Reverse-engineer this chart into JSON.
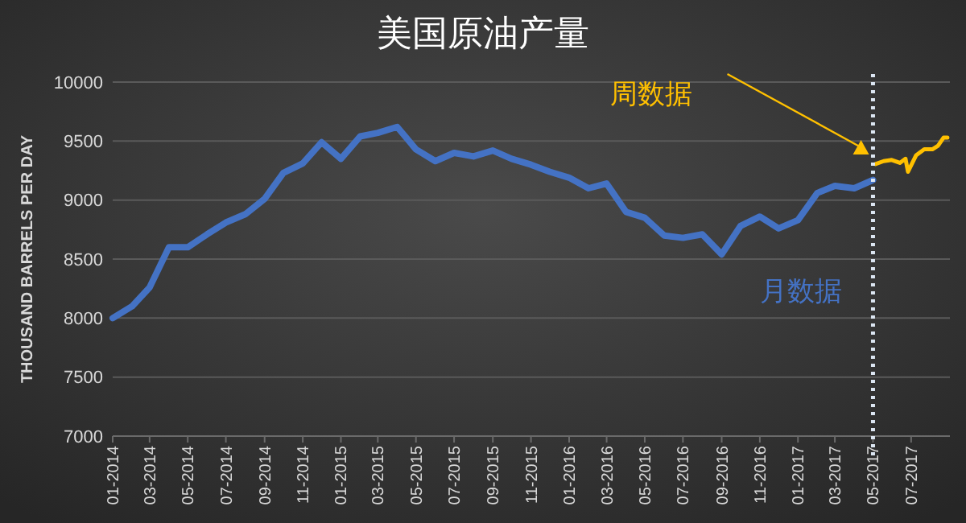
{
  "chart_data": {
    "type": "line",
    "title": "美国原油产量",
    "ylabel": "THOUSAND BARRELS PER DAY",
    "xlim": [
      "2014-01",
      "2017-09"
    ],
    "xticks": [
      {
        "value": "2014-01",
        "label": "01-2014"
      },
      {
        "value": "2014-03",
        "label": "03-2014"
      },
      {
        "value": "2014-05",
        "label": "05-2014"
      },
      {
        "value": "2014-07",
        "label": "07-2014"
      },
      {
        "value": "2014-09",
        "label": "09-2014"
      },
      {
        "value": "2014-11",
        "label": "11-2014"
      },
      {
        "value": "2015-01",
        "label": "01-2015"
      },
      {
        "value": "2015-03",
        "label": "03-2015"
      },
      {
        "value": "2015-05",
        "label": "05-2015"
      },
      {
        "value": "2015-07",
        "label": "07-2015"
      },
      {
        "value": "2015-09",
        "label": "09-2015"
      },
      {
        "value": "2015-11",
        "label": "11-2015"
      },
      {
        "value": "2016-01",
        "label": "01-2016"
      },
      {
        "value": "2016-03",
        "label": "03-2016"
      },
      {
        "value": "2016-05",
        "label": "05-2016"
      },
      {
        "value": "2016-07",
        "label": "07-2016"
      },
      {
        "value": "2016-09",
        "label": "09-2016"
      },
      {
        "value": "2016-11",
        "label": "11-2016"
      },
      {
        "value": "2017-01",
        "label": "01-2017"
      },
      {
        "value": "2017-03",
        "label": "03-2017"
      },
      {
        "value": "2017-05",
        "label": "05-2017"
      },
      {
        "value": "2017-07",
        "label": "07-2017"
      }
    ],
    "ylim": [
      7000,
      10000
    ],
    "yticks": [
      7000,
      7500,
      8000,
      8500,
      9000,
      9500,
      10000
    ],
    "grid": "y",
    "line_style": "solid",
    "marker": "none",
    "ref_lines": [
      {
        "axis": "x",
        "value": "2017-05",
        "color": "#dce6f2",
        "line_style": "dotted"
      }
    ],
    "series": [
      {
        "name": "月数据",
        "color": "#4472c4",
        "x": [
          "2014-01",
          "2014-02",
          "2014-03",
          "2014-04",
          "2014-05",
          "2014-06",
          "2014-07",
          "2014-08",
          "2014-09",
          "2014-10",
          "2014-11",
          "2014-12",
          "2015-01",
          "2015-02",
          "2015-03",
          "2015-04",
          "2015-05",
          "2015-06",
          "2015-07",
          "2015-08",
          "2015-09",
          "2015-10",
          "2015-11",
          "2015-12",
          "2016-01",
          "2016-02",
          "2016-03",
          "2016-04",
          "2016-05",
          "2016-06",
          "2016-07",
          "2016-08",
          "2016-09",
          "2016-10",
          "2016-11",
          "2016-12",
          "2017-01",
          "2017-02",
          "2017-03",
          "2017-04",
          "2017-05"
        ],
        "values": [
          8000,
          8100,
          8260,
          8600,
          8600,
          8710,
          8810,
          8880,
          9010,
          9230,
          9310,
          9490,
          9350,
          9540,
          9570,
          9620,
          9430,
          9330,
          9400,
          9370,
          9420,
          9350,
          9300,
          9240,
          9190,
          9100,
          9140,
          8900,
          8850,
          8700,
          8680,
          8710,
          8540,
          8780,
          8860,
          8760,
          8830,
          9060,
          9120,
          9100,
          9170
        ]
      },
      {
        "name": "周数据",
        "color": "#ffc000",
        "x": [
          "2017-05-05",
          "2017-05-18",
          "2017-05-31",
          "2017-06-13",
          "2017-06-22",
          "2017-06-26",
          "2017-07-09",
          "2017-07-22",
          "2017-08-04",
          "2017-08-13",
          "2017-08-22",
          "2017-08-28"
        ],
        "values": [
          9305,
          9330,
          9340,
          9315,
          9350,
          9240,
          9380,
          9430,
          9430,
          9460,
          9530,
          9530
        ]
      }
    ]
  }
}
